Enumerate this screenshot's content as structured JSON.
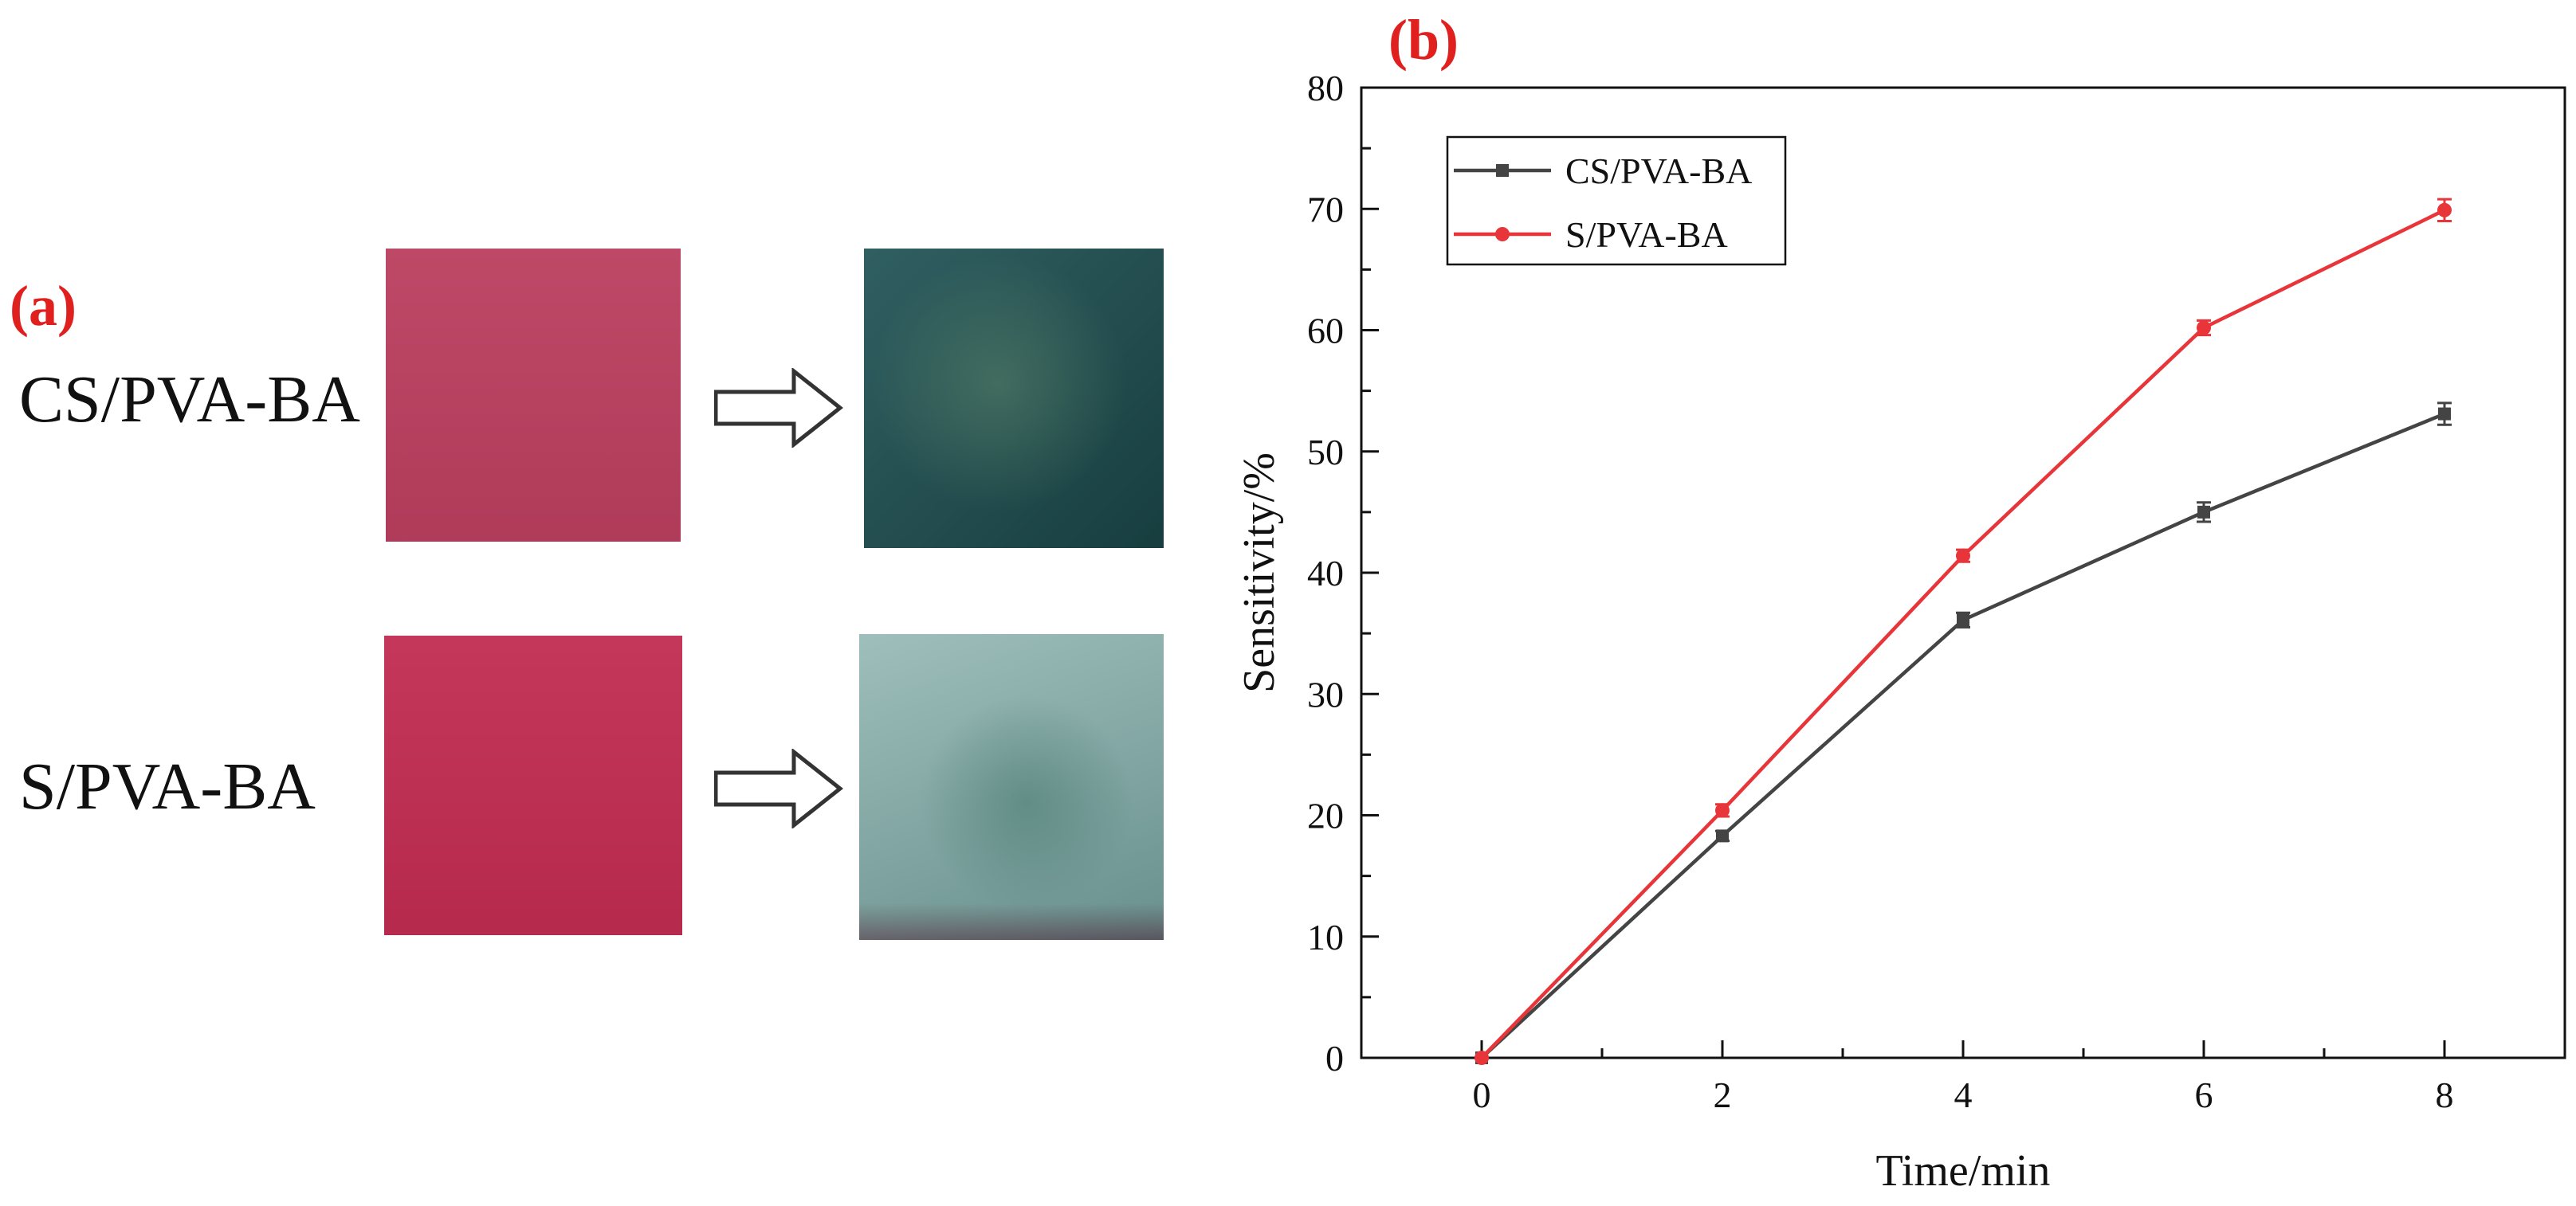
{
  "panel_a": {
    "label": "(a)",
    "samples": [
      {
        "name": "CS/PVA-BA",
        "before_color": "#ba3f5f",
        "after_color": "#1f5254"
      },
      {
        "name": "S/PVA-BA",
        "before_color": "#c12c52",
        "after_color": "#7ea9a5"
      }
    ]
  },
  "panel_b": {
    "label": "(b)"
  },
  "chart_data": {
    "type": "line",
    "title": "",
    "xlabel": "Time/min",
    "ylabel": "Sensitivity/%",
    "xlim": [
      -1,
      9
    ],
    "ylim": [
      0,
      80
    ],
    "x_ticks": [
      0,
      2,
      4,
      6,
      8
    ],
    "y_ticks": [
      0,
      10,
      20,
      30,
      40,
      50,
      60,
      70,
      80
    ],
    "legend_position": "top-left",
    "grid": false,
    "x": [
      0,
      2,
      4,
      6,
      8
    ],
    "series": [
      {
        "name": "CS/PVA-BA",
        "color": "#444444",
        "marker": "square",
        "values": [
          0,
          18.3,
          36.1,
          45.0,
          53.1
        ],
        "errors": [
          0,
          0.4,
          0.6,
          0.8,
          0.9
        ]
      },
      {
        "name": "S/PVA-BA",
        "color": "#e8353a",
        "marker": "circle",
        "values": [
          0,
          20.4,
          41.4,
          60.2,
          69.9
        ],
        "errors": [
          0,
          0.5,
          0.5,
          0.6,
          0.9
        ]
      }
    ]
  }
}
